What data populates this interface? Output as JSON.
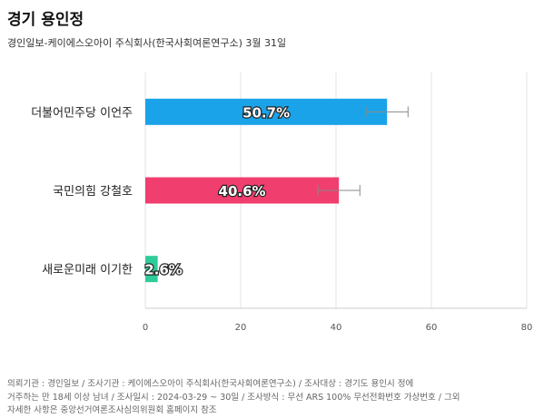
{
  "header": {
    "title": "경기 용인정",
    "subtitle": "경인일보-케이에스오아이 주식회사(한국사회여론연구소) 3월 31일"
  },
  "footer": {
    "lines": [
      "의뢰기관 : 경인일보 / 조사기관 : 케이에스오아이 주식회사(한국사회여론연구소) / 조사대상 : 경기도 용인시 정에",
      "거주하는 만 18세 이상 남녀 / 조사일시 : 2024-03-29 ~ 30일 / 조사방식 : 무선 ARS 100% 무선전화번호 가상번호 / 그외",
      "자세한 사항은 중앙선거여론조사심의위원회 홈페이지 참조"
    ]
  },
  "chart_data": {
    "type": "bar",
    "orientation": "horizontal",
    "categories": [
      "더불어민주당 이언주",
      "국민의힘 강철호",
      "새로운미래 이기한"
    ],
    "values": [
      50.7,
      40.6,
      2.6
    ],
    "value_labels": [
      "50.7%",
      "40.6%",
      "2.6%"
    ],
    "error_bars": [
      [
        46.3,
        55.1
      ],
      [
        36.2,
        45.0
      ],
      null
    ],
    "colors": [
      "#1aa3e8",
      "#f03e6e",
      "#2ecc9a"
    ],
    "xlim": [
      0,
      80
    ],
    "xticks": [
      "0",
      "20",
      "40",
      "60",
      "80"
    ],
    "grid": true,
    "legend": "none"
  }
}
